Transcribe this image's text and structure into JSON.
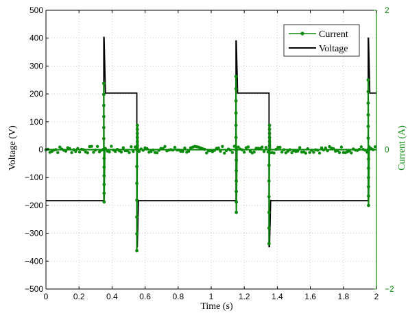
{
  "chart_data": {
    "type": "line",
    "xlabel": "Time (s)",
    "ylabel_left": "Voltage (V)",
    "ylabel_right": "Current (A)",
    "xlim": [
      0,
      2
    ],
    "ylim_left": [
      -500,
      500
    ],
    "ylim_right": [
      -2,
      2
    ],
    "x_ticks": [
      0,
      0.2,
      0.4,
      0.6,
      0.8,
      1,
      1.2,
      1.4,
      1.6,
      1.8,
      2
    ],
    "x_tick_labels": [
      "0",
      "0.2",
      "0.4",
      "0.6",
      "0.8",
      "1",
      "1.2",
      "1.4",
      "1.6",
      "1.8",
      "2"
    ],
    "y_left_ticks": [
      -500,
      -400,
      -300,
      -200,
      -100,
      0,
      100,
      200,
      300,
      400,
      500
    ],
    "y_left_tick_labels": [
      "−500",
      "−400",
      "−300",
      "−200",
      "−100",
      "0",
      "100",
      "200",
      "300",
      "400",
      "500"
    ],
    "y_right_ticks": [
      -2,
      0,
      2
    ],
    "y_right_tick_labels": [
      "−2",
      "0",
      "2"
    ],
    "grid": true,
    "legend_position": "top-right",
    "colors": {
      "current": "#0a8a0a",
      "voltage": "#000000"
    },
    "series": [
      {
        "name": "Voltage",
        "axis": "left",
        "x": [
          0,
          0.35,
          0.35,
          0.352,
          0.36,
          0.36,
          0.55,
          0.55,
          0.553,
          0.56,
          0.56,
          1.15,
          1.15,
          1.152,
          1.16,
          1.16,
          1.35,
          1.35,
          1.353,
          1.36,
          1.36,
          1.95,
          1.95,
          1.952,
          1.96,
          1.96,
          2.0
        ],
        "y": [
          -183,
          -183,
          403,
          403,
          203,
          203,
          203,
          -348,
          -348,
          -180,
          -183,
          -183,
          390,
          390,
          203,
          203,
          203,
          -348,
          -348,
          -180,
          -183,
          -183,
          400,
          400,
          203,
          203,
          203
        ]
      },
      {
        "name": "Current",
        "axis": "right",
        "x": [
          0,
          0.35,
          0.35,
          0.352,
          0.356,
          0.55,
          0.55,
          0.553,
          0.558,
          1.15,
          1.15,
          1.152,
          1.156,
          1.35,
          1.35,
          1.353,
          1.358,
          1.95,
          1.95,
          1.952,
          1.956,
          2.0
        ],
        "y": [
          0.0,
          0.0,
          0.95,
          -0.75,
          0.0,
          0.0,
          -1.45,
          0.35,
          0.0,
          0.0,
          1.05,
          -0.9,
          0.0,
          0.0,
          -1.35,
          0.35,
          0.0,
          0.0,
          1.0,
          -0.8,
          0.0,
          0.0
        ]
      }
    ]
  }
}
